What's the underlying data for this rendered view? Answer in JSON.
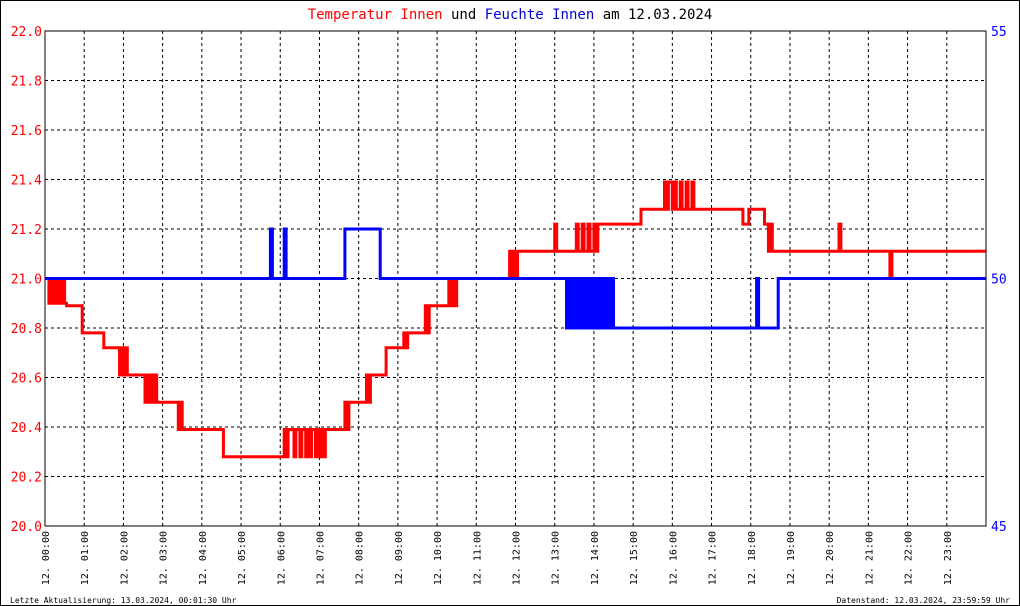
{
  "title": {
    "part1": "Temperatur Innen",
    "part2": " und ",
    "part3": "Feuchte Innen",
    "part4": " am 12.03.2024",
    "color1": "#ff0000",
    "color3": "#0000cc"
  },
  "footer": {
    "left": "Letzte Aktualisierung: 13.03.2024, 00:01:30 Uhr",
    "right": "Datenstand: 12.03.2024, 23:59:59 Uhr"
  },
  "chart_data": {
    "type": "line",
    "x_unit": "hours",
    "xlim": [
      0,
      24
    ],
    "ylim_left": [
      20.0,
      22.0
    ],
    "ylim_right": [
      45,
      55
    ],
    "grid": true,
    "left_ticks": [
      "20.0",
      "20.2",
      "20.4",
      "20.6",
      "20.8",
      "21.0",
      "21.2",
      "21.4",
      "21.6",
      "21.8",
      "22.0"
    ],
    "right_ticks": [
      "45",
      "50",
      "55"
    ],
    "x_ticks": [
      "12. 00:00",
      "12. 01:00",
      "12. 02:00",
      "12. 03:00",
      "12. 04:00",
      "12. 05:00",
      "12. 06:00",
      "12. 07:00",
      "12. 08:00",
      "12. 09:00",
      "12. 10:00",
      "12. 11:00",
      "12. 12:00",
      "12. 13:00",
      "12. 14:00",
      "12. 15:00",
      "12. 16:00",
      "12. 17:00",
      "12. 18:00",
      "12. 19:00",
      "12. 20:00",
      "12. 21:00",
      "12. 22:00",
      "12. 23:00"
    ],
    "series": [
      {
        "axis": "left",
        "color": "#ff0000",
        "x": [
          0.0,
          0.1,
          0.15,
          0.2,
          0.25,
          0.3,
          0.35,
          0.4,
          0.45,
          0.5,
          0.55,
          0.9,
          0.95,
          1.45,
          1.5,
          1.85,
          1.9,
          1.95,
          2.0,
          2.05,
          2.1,
          2.5,
          2.55,
          2.6,
          2.65,
          2.7,
          2.75,
          2.8,
          2.85,
          3.35,
          3.4,
          3.45,
          3.5,
          3.55,
          4.5,
          4.55,
          6.05,
          6.1,
          6.15,
          6.2,
          6.35,
          6.4,
          6.5,
          6.55,
          6.65,
          6.7,
          6.75,
          6.8,
          6.9,
          6.95,
          7.0,
          7.05,
          7.1,
          7.15,
          7.6,
          7.65,
          7.7,
          7.75,
          8.15,
          8.2,
          8.25,
          8.3,
          8.35,
          8.65,
          8.7,
          9.1,
          9.15,
          9.2,
          9.25,
          9.65,
          9.7,
          9.75,
          9.8,
          10.25,
          10.3,
          10.35,
          10.4,
          10.45,
          10.5,
          11.8,
          11.85,
          11.9,
          11.95,
          12.0,
          12.05,
          12.1,
          12.95,
          13.0,
          13.05,
          13.5,
          13.55,
          13.6,
          13.7,
          13.75,
          13.85,
          13.9,
          14.0,
          14.05,
          14.1,
          15.15,
          15.2,
          15.75,
          15.8,
          15.85,
          15.9,
          16.0,
          16.05,
          16.1,
          16.2,
          16.25,
          16.35,
          16.4,
          16.5,
          16.55,
          17.75,
          17.8,
          17.9,
          17.95,
          18.35,
          18.4,
          18.45,
          18.5,
          18.55,
          20.2,
          20.25,
          20.3,
          21.5,
          21.55,
          21.6,
          23.99
        ],
        "values": [
          21.0,
          20.9,
          21.0,
          20.9,
          21.0,
          20.9,
          21.0,
          20.9,
          21.0,
          20.9,
          20.89,
          20.89,
          20.78,
          20.78,
          20.72,
          20.72,
          20.61,
          20.72,
          20.61,
          20.72,
          20.61,
          20.61,
          20.5,
          20.61,
          20.5,
          20.61,
          20.5,
          20.61,
          20.5,
          20.5,
          20.39,
          20.5,
          20.39,
          20.39,
          20.39,
          20.28,
          20.28,
          20.39,
          20.28,
          20.39,
          20.28,
          20.39,
          20.28,
          20.39,
          20.28,
          20.39,
          20.28,
          20.39,
          20.28,
          20.39,
          20.28,
          20.39,
          20.28,
          20.39,
          20.39,
          20.5,
          20.39,
          20.5,
          20.5,
          20.61,
          20.5,
          20.61,
          20.61,
          20.61,
          20.72,
          20.72,
          20.78,
          20.72,
          20.78,
          20.78,
          20.89,
          20.78,
          20.89,
          20.89,
          21.0,
          20.89,
          21.0,
          20.89,
          21.0,
          21.0,
          21.11,
          21.0,
          21.11,
          21.0,
          21.11,
          21.11,
          21.11,
          21.22,
          21.11,
          21.11,
          21.22,
          21.11,
          21.22,
          21.11,
          21.22,
          21.11,
          21.22,
          21.11,
          21.22,
          21.22,
          21.28,
          21.28,
          21.39,
          21.28,
          21.39,
          21.28,
          21.39,
          21.28,
          21.39,
          21.28,
          21.39,
          21.28,
          21.39,
          21.28,
          21.28,
          21.22,
          21.22,
          21.28,
          21.22,
          21.22,
          21.11,
          21.22,
          21.11,
          21.11,
          21.22,
          21.11,
          21.11,
          21.0,
          21.11,
          21.11
        ]
      },
      {
        "axis": "right",
        "color": "#0000ff",
        "x": [
          0.0,
          5.7,
          5.75,
          5.8,
          6.05,
          6.1,
          6.15,
          7.6,
          7.65,
          7.7,
          8.5,
          8.55,
          13.25,
          13.3,
          13.35,
          13.4,
          13.45,
          13.5,
          13.55,
          13.6,
          13.65,
          13.7,
          13.75,
          13.8,
          13.85,
          13.9,
          13.95,
          14.0,
          14.05,
          14.1,
          14.15,
          14.2,
          14.25,
          14.3,
          14.35,
          14.4,
          14.45,
          14.5,
          14.55,
          18.1,
          18.15,
          18.2,
          18.25,
          18.65,
          18.7,
          18.75,
          23.99
        ],
        "values": [
          50,
          50,
          51,
          50,
          50,
          51,
          50,
          50,
          51,
          51,
          51,
          50,
          50,
          49,
          50,
          49,
          50,
          49,
          50,
          49,
          50,
          49,
          50,
          49,
          50,
          49,
          50,
          49,
          50,
          49,
          50,
          49,
          50,
          49,
          50,
          49,
          50,
          49,
          49,
          49,
          50,
          49,
          49,
          49,
          50,
          50,
          50
        ]
      }
    ]
  }
}
